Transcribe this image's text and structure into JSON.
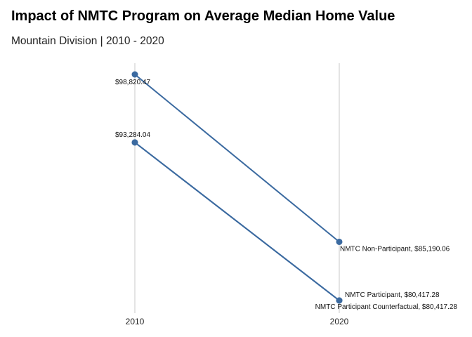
{
  "header": {
    "title": "Impact of NMTC Program on Average Median Home Value",
    "subtitle": "Mountain Division | 2010 - 2020"
  },
  "chart_data": {
    "type": "line",
    "title": "Impact of NMTC Program on Average Median Home Value",
    "subtitle": "Mountain Division | 2010 - 2020",
    "xlabel": "",
    "ylabel": "",
    "categories": [
      "2010",
      "2020"
    ],
    "ylim": [
      80417.28,
      98820.47
    ],
    "grid": "vertical",
    "legend": "none",
    "line_color": "#3b6aa0",
    "series": [
      {
        "name": "NMTC Non-Participant",
        "values": [
          98820.47,
          85190.06
        ],
        "start_label": "$98,820.47",
        "end_label": "NMTC Non-Participant, $85,190.06"
      },
      {
        "name": "NMTC Participant",
        "values": [
          93284.04,
          80417.28
        ],
        "start_label": "$93,284.04",
        "end_label": "NMTC Participant, $80,417.28"
      },
      {
        "name": "NMTC Participant Counterfactual",
        "values": [
          93284.04,
          80417.28
        ],
        "start_label": "",
        "end_label": "NMTC Participant Counterfactual, $80,417.28"
      }
    ]
  }
}
